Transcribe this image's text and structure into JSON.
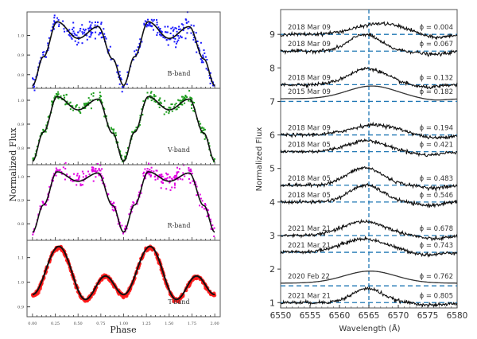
{
  "chart_data": [
    {
      "type": "scatter",
      "title": "",
      "xlabel": "Phase",
      "ylabel": "Normalized Flux",
      "xlim": [
        -0.06,
        2.06
      ],
      "x_ticks": [
        "0.00",
        "0.25",
        "0.50",
        "0.75",
        "1.00",
        "1.25",
        "1.50",
        "1.75",
        "2.00"
      ],
      "x_tick_values": [
        0,
        0.25,
        0.5,
        0.75,
        1.0,
        1.25,
        1.5,
        1.75,
        2.0
      ],
      "panels": [
        {
          "name": "B-band",
          "label": "B-band",
          "color": "#1a1aff",
          "ylim": [
            0.73,
            1.12
          ],
          "y_ticks": [
            "0.8",
            "0.9",
            "1.0"
          ],
          "y_tick_values": [
            0.8,
            0.9,
            1.0
          ],
          "model": {
            "mean": 0.955,
            "components": [
              [
                0.115,
                1,
                -1.57
              ],
              [
                0.055,
                2,
                -2.2
              ],
              [
                0.03,
                3,
                0.0
              ]
            ]
          },
          "scatter": 0.012,
          "min": 0.745,
          "max1": 1.07,
          "max2": 1.045,
          "dip": 0.985
        },
        {
          "name": "V-band",
          "label": "V-band",
          "color": "#1f9e1f",
          "ylim": [
            0.73,
            1.05
          ],
          "y_ticks": [
            "0.8",
            "0.9",
            "1.0"
          ],
          "y_tick_values": [
            0.8,
            0.9,
            1.0
          ],
          "min": 0.745,
          "max1": 1.015,
          "max2": 1.005,
          "dip": 0.96,
          "scatter": 0.006
        },
        {
          "name": "R-band",
          "label": "R-band",
          "color": "#e000e0",
          "ylim": [
            0.73,
            1.05
          ],
          "y_ticks": [
            "0.8",
            "0.9",
            "1.0"
          ],
          "y_tick_values": [
            0.8,
            0.9,
            1.0
          ],
          "min": 0.765,
          "max1": 1.02,
          "max2": 1.015,
          "dip": 0.98,
          "scatter": 0.008
        },
        {
          "name": "T-band",
          "label": "T-band",
          "color": "#ff1a1a",
          "ylim": [
            0.86,
            1.17
          ],
          "y_ticks": [
            "0.9",
            "1.0",
            "1.1"
          ],
          "y_tick_values": [
            0.9,
            1.0,
            1.1
          ],
          "min1": 0.93,
          "max1": 1.145,
          "min2": 0.945,
          "max2": 1.025,
          "scatter": 0.004
        }
      ]
    },
    {
      "type": "line",
      "title": "",
      "xlabel": "Wavelength  (Å)",
      "ylabel": "Normalized Flux",
      "xlim": [
        6550,
        6580
      ],
      "ylim": [
        0.84,
        9.74
      ],
      "x_ticks": [
        "6550",
        "6555",
        "6560",
        "6565",
        "6570",
        "6575",
        "6580"
      ],
      "x_tick_values": [
        6550,
        6555,
        6560,
        6565,
        6570,
        6575,
        6580
      ],
      "y_ticks": [
        "1",
        "2",
        "3",
        "4",
        "5",
        "6",
        "7",
        "8",
        "9"
      ],
      "y_tick_values": [
        1,
        2,
        3,
        4,
        5,
        6,
        7,
        8,
        9
      ],
      "reference_line_wavelength": 6565,
      "line_color": "#000000",
      "reference_color": "#1f77b4",
      "series": [
        {
          "date": "2018 Mar 09",
          "phase": "ϕ = 0.004",
          "baseline": 9.0,
          "peak": 0.32,
          "center": 6567,
          "width": 4.2,
          "dip": -0.12,
          "dip_center": 6576,
          "noisy": true
        },
        {
          "date": "2018 Mar 09",
          "phase": "ϕ = 0.067",
          "baseline": 8.5,
          "peak": 0.5,
          "center": 6564.3,
          "width": 2.6,
          "dip": -0.1,
          "dip_center": 6576,
          "noisy": true
        },
        {
          "date": "2018 Mar 09",
          "phase": "ϕ = 0.132",
          "baseline": 7.5,
          "peak": 0.48,
          "center": 6564.8,
          "width": 3.2,
          "dip": -0.08,
          "dip_center": 6575,
          "noisy": true
        },
        {
          "date": "2015 Mar 09",
          "phase": "ϕ = 0.182",
          "baseline": 7.08,
          "peak": 0.38,
          "center": 6565.5,
          "width": 4.2,
          "dip": -0.05,
          "dip_center": 6576,
          "noisy": false
        },
        {
          "date": "2018 Mar 09",
          "phase": "ϕ = 0.194",
          "baseline": 6.0,
          "peak": 0.3,
          "center": 6566,
          "width": 4.0,
          "dip": -0.1,
          "dip_center": 6576,
          "noisy": true
        },
        {
          "date": "2018 Mar 05",
          "phase": "ϕ = 0.421",
          "baseline": 5.5,
          "peak": 0.33,
          "center": 6564.5,
          "width": 3.3,
          "dip": -0.1,
          "dip_center": 6575,
          "noisy": true
        },
        {
          "date": "2018 Mar 05",
          "phase": "ϕ = 0.483",
          "baseline": 4.5,
          "peak": 0.52,
          "center": 6564.3,
          "width": 3.0,
          "dip": -0.08,
          "dip_center": 6576,
          "noisy": true
        },
        {
          "date": "2018 Mar 05",
          "phase": "ϕ = 0.546",
          "baseline": 4.0,
          "peak": 0.5,
          "center": 6564.5,
          "width": 2.8,
          "dip": -0.1,
          "dip_center": 6575,
          "noisy": true
        },
        {
          "date": "2021 Mar 21",
          "phase": "ϕ = 0.678",
          "baseline": 3.0,
          "peak": 0.42,
          "center": 6564.2,
          "width": 3.6,
          "dip": -0.1,
          "dip_center": 6576,
          "noisy": true
        },
        {
          "date": "2021 Mar 21",
          "phase": "ϕ = 0.743",
          "baseline": 2.5,
          "peak": 0.4,
          "center": 6564.2,
          "width": 3.8,
          "dip": -0.08,
          "dip_center": 6575,
          "noisy": true
        },
        {
          "date": "2020 Feb 22",
          "phase": "ϕ = 0.762",
          "baseline": 1.58,
          "peak": 0.36,
          "center": 6565.2,
          "width": 4.4,
          "dip": 0.0,
          "dip_center": 6576,
          "noisy": false
        },
        {
          "date": "2021 Mar 21",
          "phase": "ϕ = 0.805",
          "baseline": 1.0,
          "peak": 0.42,
          "center": 6564.8,
          "width": 2.6,
          "dip": -0.08,
          "dip_center": 6576,
          "noisy": true
        }
      ]
    }
  ]
}
